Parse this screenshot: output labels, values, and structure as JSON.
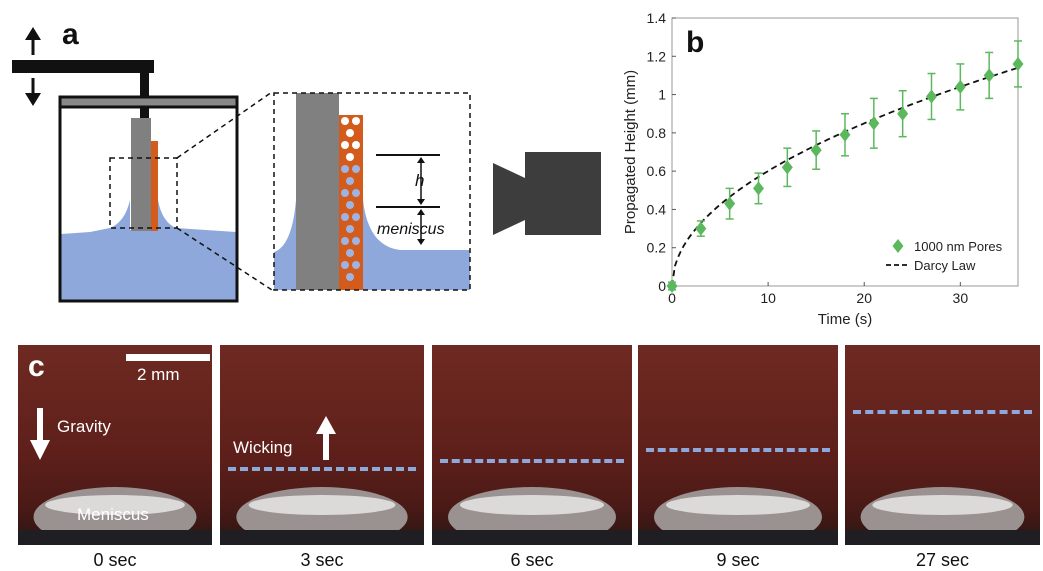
{
  "panel_a": {
    "label": "a",
    "zoom_h_label": "h",
    "zoom_meniscus_label": "meniscus",
    "colors": {
      "liquid": "#8fa8dc",
      "rod": "#808080",
      "membrane": "#d35b1b",
      "frame": "#111111"
    }
  },
  "panel_b": {
    "label": "b",
    "chart_data": {
      "type": "scatter",
      "xlabel": "Time (s)",
      "ylabel": "Propagated Height (mm)",
      "xlim": [
        0,
        36
      ],
      "ylim": [
        0,
        1.4
      ],
      "xticks": [
        "0",
        "10",
        "20",
        "30"
      ],
      "yticks": [
        "0",
        "0.2",
        "0.4",
        "0.6",
        "0.8",
        "1",
        "1.2",
        "1.4"
      ],
      "grid": false,
      "legend_position": "bottom-right",
      "series": [
        {
          "name": "1000 nm Pores",
          "marker": "diamond",
          "color": "#5cb85c",
          "points": [
            {
              "x": 0,
              "y": 0.0,
              "err": 0.02
            },
            {
              "x": 3,
              "y": 0.3,
              "err": 0.04
            },
            {
              "x": 6,
              "y": 0.43,
              "err": 0.08
            },
            {
              "x": 9,
              "y": 0.51,
              "err": 0.08
            },
            {
              "x": 12,
              "y": 0.62,
              "err": 0.1
            },
            {
              "x": 15,
              "y": 0.71,
              "err": 0.1
            },
            {
              "x": 18,
              "y": 0.79,
              "err": 0.11
            },
            {
              "x": 21,
              "y": 0.85,
              "err": 0.13
            },
            {
              "x": 24,
              "y": 0.9,
              "err": 0.12
            },
            {
              "x": 27,
              "y": 0.99,
              "err": 0.12
            },
            {
              "x": 30,
              "y": 1.04,
              "err": 0.12
            },
            {
              "x": 33,
              "y": 1.1,
              "err": 0.12
            },
            {
              "x": 36,
              "y": 1.16,
              "err": 0.12
            }
          ]
        },
        {
          "name": "Darcy Law",
          "line_style": "dashed",
          "color": "#111111",
          "curve": "y = 0.19 * sqrt(x)"
        }
      ]
    }
  },
  "panel_c": {
    "label": "c",
    "scale_bar_label": "2 mm",
    "gravity_label": "Gravity",
    "wicking_label": "Wicking",
    "meniscus_label": "Meniscus",
    "dash_color": "#8fa8dc",
    "frames": [
      {
        "caption": "0 sec"
      },
      {
        "caption": "3 sec"
      },
      {
        "caption": "6 sec"
      },
      {
        "caption": "9 sec"
      },
      {
        "caption": "27 sec"
      }
    ]
  }
}
